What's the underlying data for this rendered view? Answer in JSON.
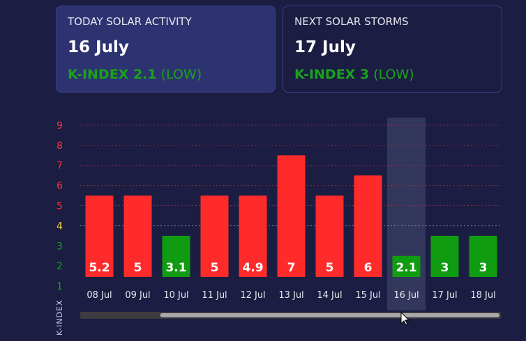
{
  "cards": {
    "today": {
      "heading": "TODAY SOLAR ACTIVITY",
      "date": "16 July",
      "kindex_label": "K-INDEX 2.1",
      "level": "(LOW)"
    },
    "next": {
      "heading": "NEXT SOLAR STORMS",
      "date": "17 July",
      "kindex_label": "K-INDEX 3",
      "level": "(LOW)"
    }
  },
  "colors": {
    "high": "#ff2b2b",
    "low": "#109c10",
    "medium_tick": "#ffd23a",
    "low_tick": "#19a31b",
    "high_tick": "#ff3333",
    "selected_band": "#34375c",
    "scrollbar_track": "#3c3c40",
    "scrollbar_thumb": "#a9a9a9"
  },
  "chart_data": {
    "type": "bar",
    "ylabel": "K-INDEX",
    "ylim": [
      0.5,
      9.5
    ],
    "yticks": [
      1,
      2,
      3,
      4,
      5,
      6,
      7,
      8,
      9
    ],
    "categories": [
      "08 Jul",
      "09 Jul",
      "10 Jul",
      "11 Jul",
      "12 Jul",
      "13 Jul",
      "14 Jul",
      "15 Jul",
      "16 Jul",
      "17 Jul",
      "18 Jul"
    ],
    "values": [
      5.2,
      5,
      3.1,
      5,
      4.9,
      7,
      5,
      6,
      2.1,
      3,
      3
    ],
    "value_labels": [
      "5.2",
      "5",
      "3.1",
      "5",
      "4.9",
      "7",
      "5",
      "6",
      "2.1",
      "3",
      "3"
    ],
    "visual_levels": [
      5.5,
      5.5,
      3.5,
      5.5,
      5.5,
      7.5,
      5.5,
      6.5,
      2.5,
      3.5,
      3.5
    ],
    "status": [
      "high",
      "high",
      "low",
      "high",
      "high",
      "high",
      "high",
      "high",
      "low",
      "low",
      "low"
    ],
    "highlighted": "16 Jul",
    "grid": true
  },
  "scrollbar": {
    "thumb_start_fraction": 0.19,
    "thumb_end_fraction": 1.0
  }
}
